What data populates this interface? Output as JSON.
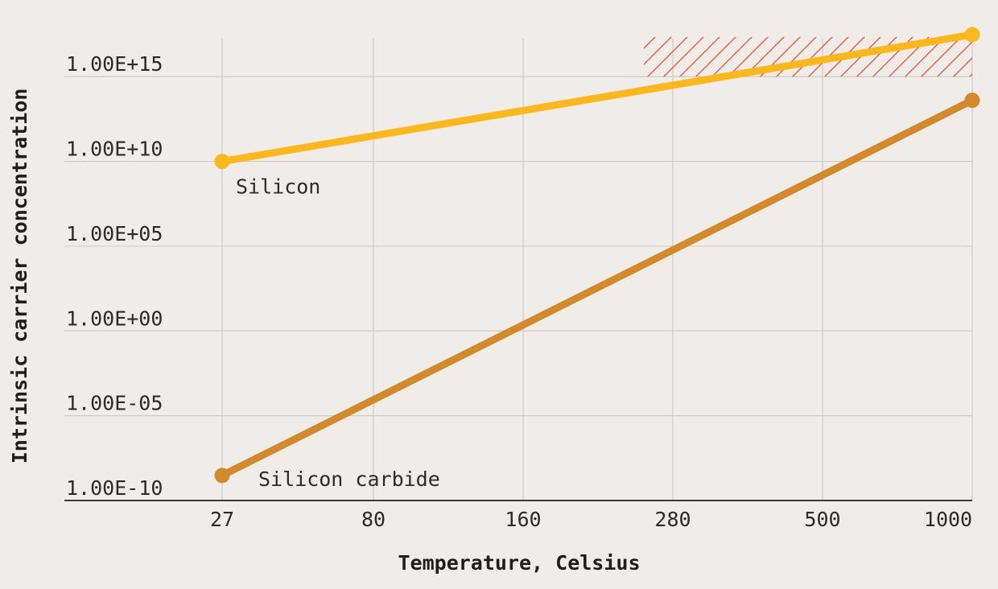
{
  "chart_data": {
    "type": "line",
    "xlabel": "Temperature, Celsius",
    "ylabel": "Intrinsic carrier concentration",
    "x_scale": "categorical",
    "y_scale": "log",
    "x": [
      "27",
      "80",
      "160",
      "280",
      "500",
      "1000"
    ],
    "y_ticks": [
      "1.00E-10",
      "1.00E-05",
      "1.00E+00",
      "1.00E+05",
      "1.00E+10",
      "1.00E+15"
    ],
    "y_tick_values": [
      1e-10,
      1e-05,
      1,
      100000,
      10000000000,
      1000000000000000
    ],
    "ylim": [
      1e-10,
      1e+18
    ],
    "grid": true,
    "shaded_region": {
      "x_range": [
        "260",
        "1000"
      ],
      "y_range": [
        1000000000000000,
        1e+18
      ],
      "pattern": "hatched"
    },
    "series": [
      {
        "name": "Silicon",
        "x": [
          "27",
          "1000"
        ],
        "values": [
          10000000000,
          300000000000000000
        ],
        "color": "#fbb81b"
      },
      {
        "name": "Silicon carbide",
        "x": [
          "27",
          "1000"
        ],
        "values": [
          3e-09,
          40000000000000
        ],
        "color": "#d4892b"
      }
    ]
  },
  "colors": {
    "background": "#f0ecea",
    "grid": "#cfcbc8",
    "axis": "#3a3a3a",
    "hatch": "#f05a3c"
  }
}
